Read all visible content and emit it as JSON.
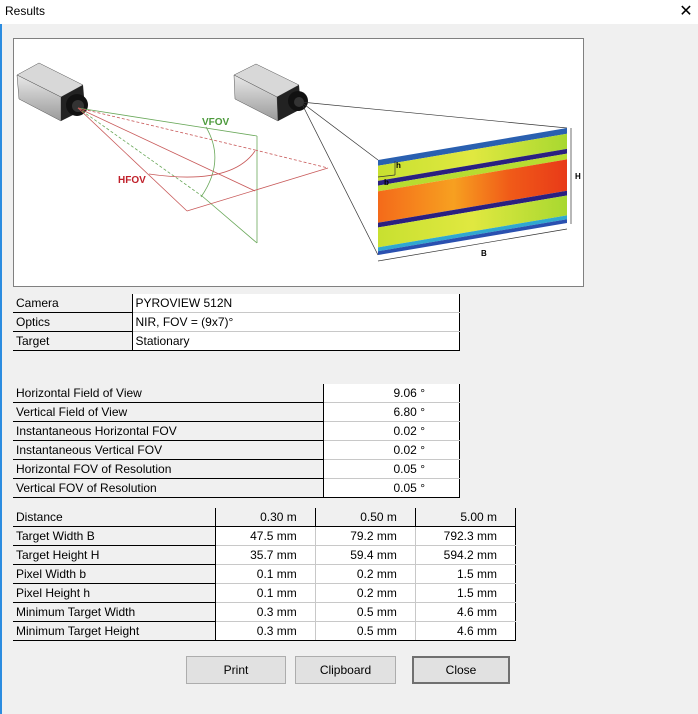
{
  "window": {
    "title": "Results",
    "close_icon": "close-icon"
  },
  "illustration": {
    "vfov_label": "VFOV",
    "hfov_label": "HFOV",
    "label_H": "H",
    "label_B": "B",
    "label_h": "h",
    "label_b": "b"
  },
  "info_table": [
    {
      "label": "Camera",
      "value": "PYROVIEW 512N"
    },
    {
      "label": "Optics",
      "value": "NIR, FOV = (9x7)°"
    },
    {
      "label": "Target",
      "value": "Stationary"
    }
  ],
  "fov_table": [
    {
      "label": "Horizontal Field of View",
      "value": "9.06 °"
    },
    {
      "label": "Vertical Field of View",
      "value": "6.80 °"
    },
    {
      "label": "Instantaneous Horizontal FOV",
      "value": "0.02 °"
    },
    {
      "label": "Instantaneous Vertical FOV",
      "value": "0.02 °"
    },
    {
      "label": "Horizontal FOV of Resolution",
      "value": "0.05 °"
    },
    {
      "label": "Vertical FOV of Resolution",
      "value": "0.05 °"
    }
  ],
  "distance_table": {
    "header": {
      "label": "Distance",
      "values": [
        "0.30 m",
        "0.50 m",
        "5.00 m"
      ]
    },
    "rows": [
      {
        "label": "Target Width B",
        "values": [
          "47.5 mm",
          "79.2 mm",
          "792.3 mm"
        ]
      },
      {
        "label": "Target Height H",
        "values": [
          "35.7 mm",
          "59.4 mm",
          "594.2 mm"
        ]
      },
      {
        "label": "Pixel Width b",
        "values": [
          "0.1 mm",
          "0.2 mm",
          "1.5 mm"
        ]
      },
      {
        "label": "Pixel Height h",
        "values": [
          "0.1 mm",
          "0.2 mm",
          "1.5 mm"
        ]
      },
      {
        "label": "Minimum Target Width",
        "values": [
          "0.3 mm",
          "0.5 mm",
          "4.6 mm"
        ]
      },
      {
        "label": "Minimum Target Height",
        "values": [
          "0.3 mm",
          "0.5 mm",
          "4.6 mm"
        ]
      }
    ]
  },
  "buttons": {
    "print": "Print",
    "clipboard": "Clipboard",
    "close": "Close"
  },
  "colors": {
    "vfov": "#4c9a3c",
    "hfov": "#c0202a",
    "accent": "#2b8ce0"
  }
}
